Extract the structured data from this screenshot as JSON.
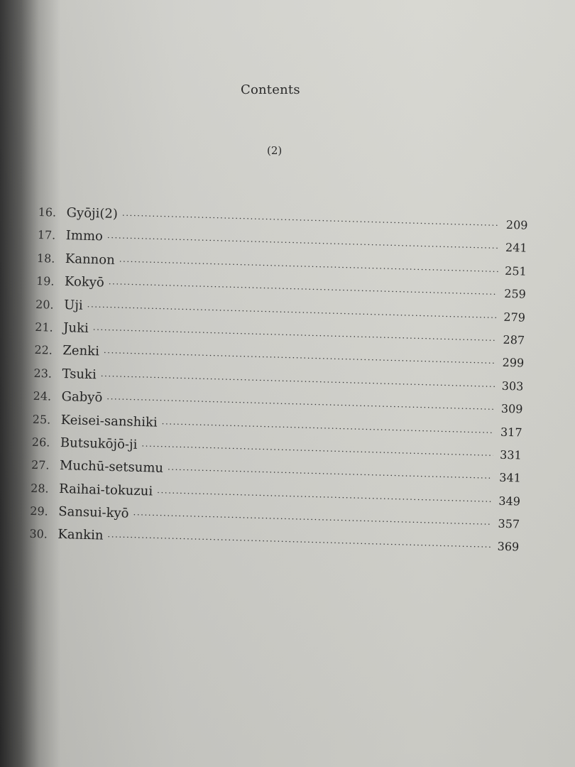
{
  "header": {
    "title": "Contents",
    "volume": "(2)"
  },
  "entries": [
    {
      "number": "16.",
      "title": "Gyōji(2)",
      "page": "209"
    },
    {
      "number": "17.",
      "title": "Immo",
      "page": "241"
    },
    {
      "number": "18.",
      "title": "Kannon",
      "page": "251"
    },
    {
      "number": "19.",
      "title": "Kokyō",
      "page": "259"
    },
    {
      "number": "20.",
      "title": "Uji",
      "page": "279"
    },
    {
      "number": "21.",
      "title": "Juki",
      "page": "287"
    },
    {
      "number": "22.",
      "title": "Zenki",
      "page": "299"
    },
    {
      "number": "23.",
      "title": "Tsuki",
      "page": "303"
    },
    {
      "number": "24.",
      "title": "Gabyō",
      "page": "309"
    },
    {
      "number": "25.",
      "title": "Keisei-sanshiki",
      "page": "317"
    },
    {
      "number": "26.",
      "title": "Butsukōjō-ji",
      "page": "331"
    },
    {
      "number": "27.",
      "title": "Muchū-setsumu",
      "page": "341"
    },
    {
      "number": "28.",
      "title": "Raihai-tokuzui",
      "page": "349"
    },
    {
      "number": "29.",
      "title": "Sansui-kyō",
      "page": "357"
    },
    {
      "number": "30.",
      "title": "Kankin",
      "page": "369"
    }
  ]
}
